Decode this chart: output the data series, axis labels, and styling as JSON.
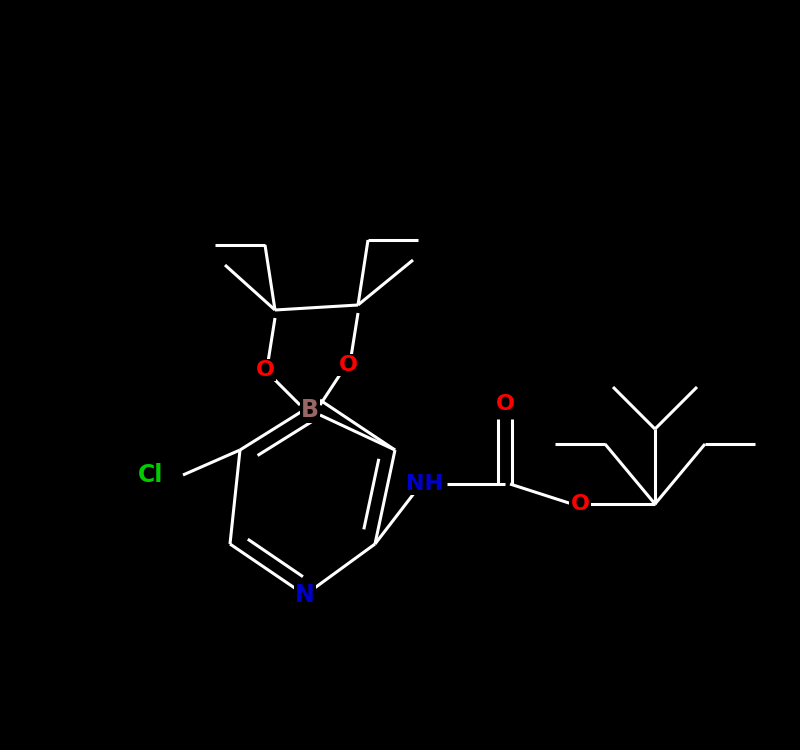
{
  "background_color": "#000000",
  "bond_color": "#ffffff",
  "atom_colors": {
    "O": "#ff0000",
    "N": "#0000cc",
    "B": "#996666",
    "Cl": "#00cc00",
    "C": "#ffffff",
    "H": "#ffffff"
  },
  "bond_width": 2.2,
  "font_size": 15,
  "figsize": [
    8.0,
    7.5
  ],
  "dpi": 100
}
